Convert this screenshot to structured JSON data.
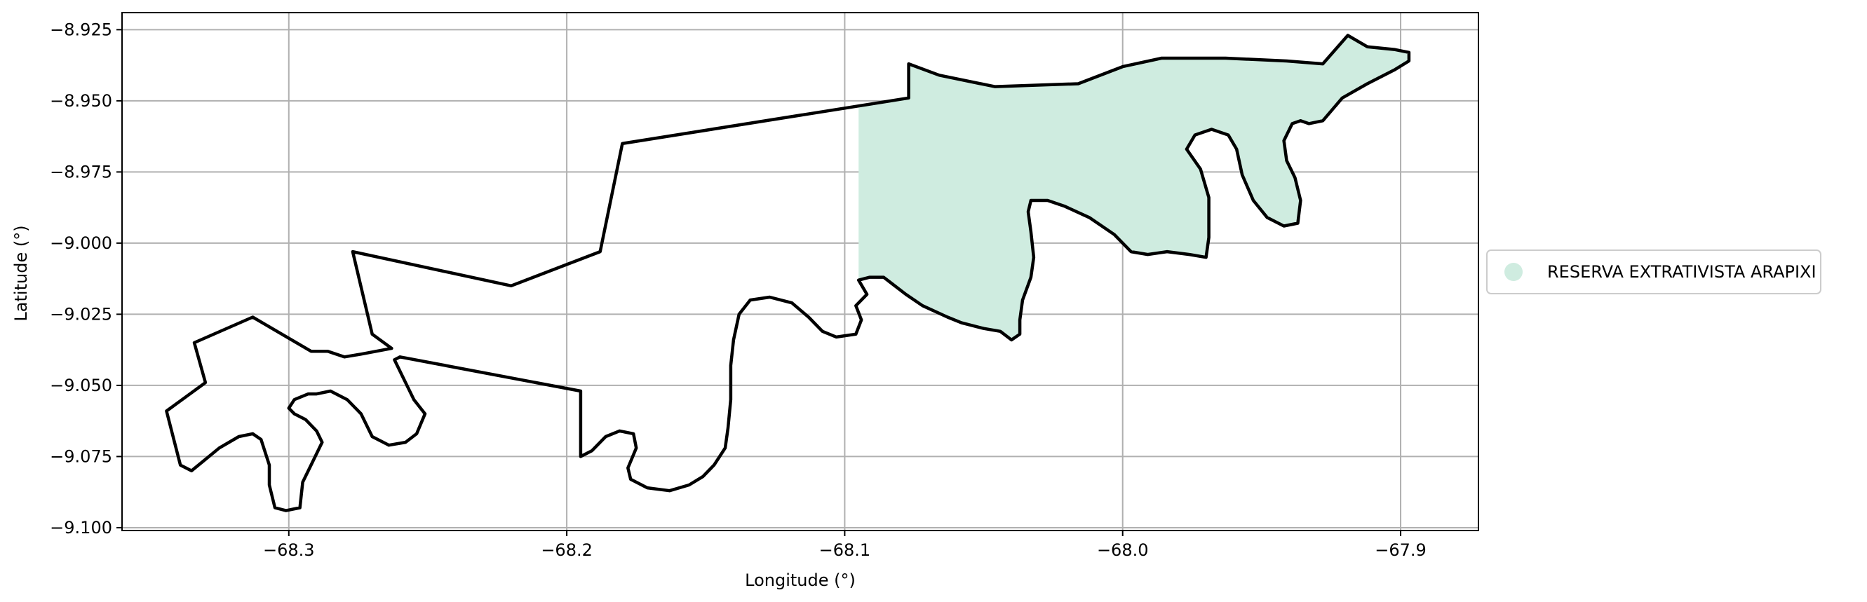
{
  "chart_data": {
    "type": "map",
    "xlabel": "Longitude (°)",
    "ylabel": "Latitude (°)",
    "xlim": [
      -68.36,
      -67.872
    ],
    "ylim": [
      -9.101,
      -8.919
    ],
    "grid": true,
    "x_ticks": [
      {
        "value": -68.3,
        "label": "−68.3"
      },
      {
        "value": -68.2,
        "label": "−68.2"
      },
      {
        "value": -68.1,
        "label": "−68.1"
      },
      {
        "value": -68.0,
        "label": "−68.0"
      },
      {
        "value": -67.9,
        "label": "−67.9"
      }
    ],
    "y_ticks": [
      {
        "value": -8.925,
        "label": "−8.925"
      },
      {
        "value": -8.95,
        "label": "−8.950"
      },
      {
        "value": -8.975,
        "label": "−8.975"
      },
      {
        "value": -9.0,
        "label": "−9.000"
      },
      {
        "value": -9.025,
        "label": "−9.025"
      },
      {
        "value": -9.05,
        "label": "−9.050"
      },
      {
        "value": -9.075,
        "label": "−9.075"
      },
      {
        "value": -9.1,
        "label": "−9.100"
      }
    ],
    "legend": {
      "placement": "right",
      "entries": [
        {
          "label": "RESERVA EXTRATIVISTA ARAPIXI",
          "color": "#cfece0"
        }
      ]
    },
    "colors": {
      "fill": "#cfece0",
      "outline": "#000000",
      "grid": "#b0b0b0"
    },
    "fill_polygon": [
      [
        -68.095,
        -8.952
      ],
      [
        -68.077,
        -8.949
      ],
      [
        -68.077,
        -8.937
      ],
      [
        -68.066,
        -8.941
      ],
      [
        -68.046,
        -8.945
      ],
      [
        -68.016,
        -8.944
      ],
      [
        -68.0,
        -8.938
      ],
      [
        -67.986,
        -8.935
      ],
      [
        -67.963,
        -8.935
      ],
      [
        -67.941,
        -8.936
      ],
      [
        -67.928,
        -8.937
      ],
      [
        -67.919,
        -8.927
      ],
      [
        -67.912,
        -8.931
      ],
      [
        -67.902,
        -8.932
      ],
      [
        -67.897,
        -8.933
      ],
      [
        -67.897,
        -8.936
      ],
      [
        -67.902,
        -8.939
      ],
      [
        -67.912,
        -8.944
      ],
      [
        -67.921,
        -8.949
      ],
      [
        -67.928,
        -8.957
      ],
      [
        -67.933,
        -8.958
      ],
      [
        -67.936,
        -8.957
      ],
      [
        -67.939,
        -8.958
      ],
      [
        -67.942,
        -8.964
      ],
      [
        -67.941,
        -8.971
      ],
      [
        -67.938,
        -8.977
      ],
      [
        -67.936,
        -8.985
      ],
      [
        -67.937,
        -8.993
      ],
      [
        -67.942,
        -8.994
      ],
      [
        -67.948,
        -8.991
      ],
      [
        -67.953,
        -8.985
      ],
      [
        -67.957,
        -8.976
      ],
      [
        -67.959,
        -8.967
      ],
      [
        -67.962,
        -8.962
      ],
      [
        -67.968,
        -8.96
      ],
      [
        -67.974,
        -8.962
      ],
      [
        -67.977,
        -8.967
      ],
      [
        -67.972,
        -8.974
      ],
      [
        -67.969,
        -8.984
      ],
      [
        -67.969,
        -8.998
      ],
      [
        -67.97,
        -9.005
      ],
      [
        -67.976,
        -9.004
      ],
      [
        -67.984,
        -9.003
      ],
      [
        -67.991,
        -9.004
      ],
      [
        -67.997,
        -9.003
      ],
      [
        -68.003,
        -8.997
      ],
      [
        -68.012,
        -8.991
      ],
      [
        -68.021,
        -8.987
      ],
      [
        -68.027,
        -8.985
      ],
      [
        -68.033,
        -8.985
      ],
      [
        -68.034,
        -8.989
      ],
      [
        -68.033,
        -8.996
      ],
      [
        -68.032,
        -9.005
      ],
      [
        -68.033,
        -9.012
      ],
      [
        -68.036,
        -9.02
      ],
      [
        -68.037,
        -9.027
      ],
      [
        -68.037,
        -9.032
      ],
      [
        -68.04,
        -9.034
      ],
      [
        -68.044,
        -9.031
      ],
      [
        -68.05,
        -9.03
      ],
      [
        -68.058,
        -9.028
      ],
      [
        -68.063,
        -9.026
      ],
      [
        -68.072,
        -9.022
      ],
      [
        -68.078,
        -9.018
      ],
      [
        -68.086,
        -9.012
      ],
      [
        -68.091,
        -9.012
      ],
      [
        -68.095,
        -9.013
      ],
      [
        -68.095,
        -8.985
      ]
    ],
    "outline": [
      [
        -68.077,
        -8.949
      ],
      [
        -68.077,
        -8.937
      ],
      [
        -68.066,
        -8.941
      ],
      [
        -68.046,
        -8.945
      ],
      [
        -68.016,
        -8.944
      ],
      [
        -68.0,
        -8.938
      ],
      [
        -67.986,
        -8.935
      ],
      [
        -67.963,
        -8.935
      ],
      [
        -67.941,
        -8.936
      ],
      [
        -67.928,
        -8.937
      ],
      [
        -67.919,
        -8.927
      ],
      [
        -67.912,
        -8.931
      ],
      [
        -67.902,
        -8.932
      ],
      [
        -67.897,
        -8.933
      ],
      [
        -67.897,
        -8.936
      ],
      [
        -67.902,
        -8.939
      ],
      [
        -67.912,
        -8.944
      ],
      [
        -67.921,
        -8.949
      ],
      [
        -67.928,
        -8.957
      ],
      [
        -67.933,
        -8.958
      ],
      [
        -67.936,
        -8.957
      ],
      [
        -67.939,
        -8.958
      ],
      [
        -67.942,
        -8.964
      ],
      [
        -67.941,
        -8.971
      ],
      [
        -67.938,
        -8.977
      ],
      [
        -67.936,
        -8.985
      ],
      [
        -67.937,
        -8.993
      ],
      [
        -67.942,
        -8.994
      ],
      [
        -67.948,
        -8.991
      ],
      [
        -67.953,
        -8.985
      ],
      [
        -67.957,
        -8.976
      ],
      [
        -67.959,
        -8.967
      ],
      [
        -67.962,
        -8.962
      ],
      [
        -67.968,
        -8.96
      ],
      [
        -67.974,
        -8.962
      ],
      [
        -67.977,
        -8.967
      ],
      [
        -67.972,
        -8.974
      ],
      [
        -67.969,
        -8.984
      ],
      [
        -67.969,
        -8.998
      ],
      [
        -67.97,
        -9.005
      ],
      [
        -67.976,
        -9.004
      ],
      [
        -67.984,
        -9.003
      ],
      [
        -67.991,
        -9.004
      ],
      [
        -67.997,
        -9.003
      ],
      [
        -68.003,
        -8.997
      ],
      [
        -68.012,
        -8.991
      ],
      [
        -68.021,
        -8.987
      ],
      [
        -68.027,
        -8.985
      ],
      [
        -68.033,
        -8.985
      ],
      [
        -68.034,
        -8.989
      ],
      [
        -68.033,
        -8.996
      ],
      [
        -68.032,
        -9.005
      ],
      [
        -68.033,
        -9.012
      ],
      [
        -68.036,
        -9.02
      ],
      [
        -68.037,
        -9.027
      ],
      [
        -68.037,
        -9.032
      ],
      [
        -68.04,
        -9.034
      ],
      [
        -68.044,
        -9.031
      ],
      [
        -68.05,
        -9.03
      ],
      [
        -68.058,
        -9.028
      ],
      [
        -68.063,
        -9.026
      ],
      [
        -68.072,
        -9.022
      ],
      [
        -68.078,
        -9.018
      ],
      [
        -68.086,
        -9.012
      ],
      [
        -68.091,
        -9.012
      ],
      [
        -68.095,
        -9.013
      ],
      [
        -68.092,
        -9.018
      ],
      [
        -68.096,
        -9.022
      ],
      [
        -68.094,
        -9.027
      ],
      [
        -68.096,
        -9.032
      ],
      [
        -68.103,
        -9.033
      ],
      [
        -68.108,
        -9.031
      ],
      [
        -68.113,
        -9.026
      ],
      [
        -68.119,
        -9.021
      ],
      [
        -68.127,
        -9.019
      ],
      [
        -68.134,
        -9.02
      ],
      [
        -68.138,
        -9.025
      ],
      [
        -68.14,
        -9.034
      ],
      [
        -68.141,
        -9.043
      ],
      [
        -68.141,
        -9.055
      ],
      [
        -68.142,
        -9.065
      ],
      [
        -68.143,
        -9.072
      ],
      [
        -68.147,
        -9.078
      ],
      [
        -68.151,
        -9.082
      ],
      [
        -68.156,
        -9.085
      ],
      [
        -68.163,
        -9.087
      ],
      [
        -68.171,
        -9.086
      ],
      [
        -68.177,
        -9.083
      ],
      [
        -68.178,
        -9.079
      ],
      [
        -68.175,
        -9.072
      ],
      [
        -68.176,
        -9.067
      ],
      [
        -68.181,
        -9.066
      ],
      [
        -68.186,
        -9.068
      ],
      [
        -68.191,
        -9.073
      ],
      [
        -68.195,
        -9.075
      ],
      [
        -68.195,
        -9.052
      ],
      [
        -68.26,
        -9.04
      ],
      [
        -68.262,
        -9.041
      ],
      [
        -68.255,
        -9.055
      ],
      [
        -68.251,
        -9.06
      ],
      [
        -68.254,
        -9.067
      ],
      [
        -68.258,
        -9.07
      ],
      [
        -68.264,
        -9.071
      ],
      [
        -68.27,
        -9.068
      ],
      [
        -68.274,
        -9.06
      ],
      [
        -68.279,
        -9.055
      ],
      [
        -68.285,
        -9.052
      ],
      [
        -68.29,
        -9.053
      ],
      [
        -68.293,
        -9.053
      ],
      [
        -68.298,
        -9.055
      ],
      [
        -68.3,
        -9.058
      ],
      [
        -68.298,
        -9.06
      ],
      [
        -68.294,
        -9.062
      ],
      [
        -68.29,
        -9.066
      ],
      [
        -68.288,
        -9.07
      ],
      [
        -68.292,
        -9.078
      ],
      [
        -68.295,
        -9.084
      ],
      [
        -68.296,
        -9.093
      ],
      [
        -68.301,
        -9.094
      ],
      [
        -68.305,
        -9.093
      ],
      [
        -68.307,
        -9.085
      ],
      [
        -68.307,
        -9.078
      ],
      [
        -68.31,
        -9.069
      ],
      [
        -68.313,
        -9.067
      ],
      [
        -68.318,
        -9.068
      ],
      [
        -68.325,
        -9.072
      ],
      [
        -68.33,
        -9.076
      ],
      [
        -68.335,
        -9.08
      ],
      [
        -68.339,
        -9.078
      ],
      [
        -68.344,
        -9.059
      ],
      [
        -68.33,
        -9.049
      ],
      [
        -68.334,
        -9.035
      ],
      [
        -68.313,
        -9.026
      ],
      [
        -68.292,
        -9.038
      ],
      [
        -68.286,
        -9.038
      ],
      [
        -68.28,
        -9.04
      ],
      [
        -68.274,
        -9.039
      ],
      [
        -68.263,
        -9.037
      ],
      [
        -68.27,
        -9.032
      ],
      [
        -68.277,
        -9.003
      ],
      [
        -68.22,
        -9.015
      ],
      [
        -68.188,
        -9.003
      ],
      [
        -68.18,
        -8.965
      ],
      [
        -68.077,
        -8.949
      ]
    ]
  }
}
